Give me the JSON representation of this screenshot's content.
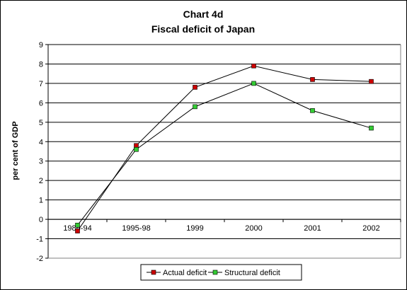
{
  "chart_data": {
    "type": "line",
    "title": "Chart 4d",
    "subtitle": "Fiscal deficit of Japan",
    "xlabel": "",
    "ylabel": "per cent of GDP",
    "categories": [
      "1986-94",
      "1995-98",
      "1999",
      "2000",
      "2001",
      "2002"
    ],
    "ylim": [
      -2,
      9
    ],
    "yticks": [
      -2,
      -1,
      0,
      1,
      2,
      3,
      4,
      5,
      6,
      7,
      8,
      9
    ],
    "grid": true,
    "legend_position": "bottom",
    "series": [
      {
        "name": "Actual deficit",
        "color": "#cc0000",
        "values": [
          -0.6,
          3.8,
          6.8,
          7.9,
          7.2,
          7.1
        ]
      },
      {
        "name": "Structural deficit",
        "color": "#33cc33",
        "values": [
          -0.3,
          3.6,
          5.8,
          7.0,
          5.6,
          4.7
        ]
      }
    ]
  }
}
